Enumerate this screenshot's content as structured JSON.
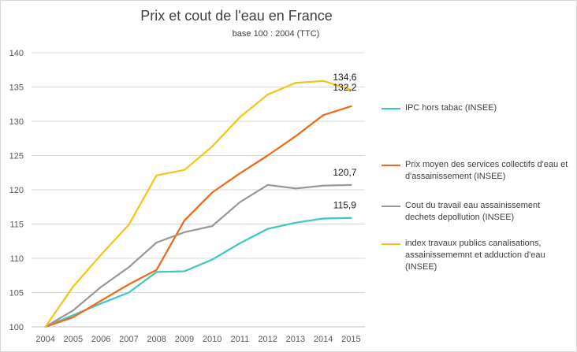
{
  "chart_data": {
    "type": "line",
    "title": "Prix et cout de l'eau en France",
    "subtitle": "base 100 : 2004 (TTC)",
    "x": [
      "2004",
      "2005",
      "2006",
      "2007",
      "2008",
      "2009",
      "2010",
      "2011",
      "2012",
      "2013",
      "2014",
      "2015"
    ],
    "ylim": [
      100,
      140
    ],
    "yticks": [
      100,
      105,
      110,
      115,
      120,
      125,
      130,
      135,
      140
    ],
    "grid": true,
    "legend_position": "right",
    "series": [
      {
        "name": "IPC hors tabac (INSEE)",
        "color": "#3ec8c0",
        "values": [
          100,
          101.7,
          103.4,
          105,
          108,
          108.1,
          109.8,
          112.2,
          114.3,
          115.2,
          115.8,
          115.9
        ],
        "end_label": "115,9"
      },
      {
        "name": "Prix moyen des services collectifs d'eau et d'assainissement (INSEE)",
        "color": "#f06a1d",
        "values": [
          100,
          101.4,
          103.8,
          106.2,
          108.3,
          115.5,
          119.6,
          122.4,
          125,
          127.8,
          130.9,
          132.2
        ],
        "end_label": "132,2"
      },
      {
        "name": "Cout du travail eau assainissement dechets depollution (INSEE)",
        "color": "#999999",
        "values": [
          100,
          102.4,
          105.8,
          108.7,
          112.3,
          113.8,
          114.7,
          118.2,
          120.7,
          120.2,
          120.6,
          120.7
        ],
        "end_label": "120,7"
      },
      {
        "name": "index travaux publics canalisations, assainissememnt et adduction d'eau (INSEE)",
        "color": "#f5c518",
        "values": [
          100,
          105.9,
          110.5,
          114.9,
          122.1,
          122.9,
          126.3,
          130.6,
          133.9,
          135.6,
          135.9,
          134.6
        ],
        "end_label": "134,6"
      }
    ],
    "legend_lines": [
      [
        "IPC hors tabac (INSEE)"
      ],
      [
        "Prix moyen des services collectifs d'eau et",
        "d'assainissement (INSEE)"
      ],
      [
        "Cout du travail eau assainissement",
        "dechets depollution (INSEE)"
      ],
      [
        "index travaux publics canalisations,",
        "assainissememnt et adduction d'eau",
        "(INSEE)"
      ]
    ]
  }
}
